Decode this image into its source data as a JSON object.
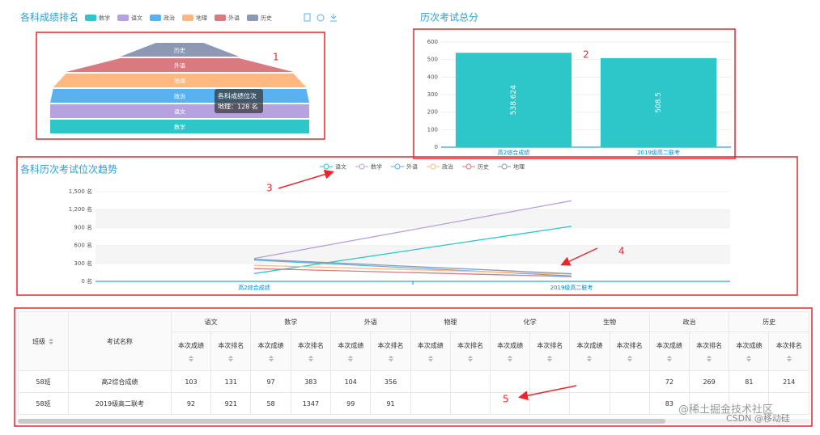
{
  "chart_data": [
    {
      "type": "funnel",
      "title": "各科成绩排名",
      "categories": [
        "数学",
        "语文",
        "政治",
        "地理",
        "外语",
        "历史"
      ],
      "values": [
        131,
        131,
        131,
        128,
        115,
        60
      ],
      "colors": [
        "#2ec7c9",
        "#b6a2de",
        "#5ab1ef",
        "#ffb980",
        "#d87a80",
        "#8d98b3"
      ],
      "tooltip": {
        "title": "各科成绩位次",
        "text": "地理：128 名"
      }
    },
    {
      "type": "bar",
      "title": "历次考试总分",
      "categories": [
        "高2综合成绩",
        "2019级高二联考"
      ],
      "values": [
        538.624,
        508.5
      ],
      "color": "#2ec7c9",
      "ylim": [
        0,
        600
      ],
      "yticks": [
        0,
        100,
        200,
        300,
        400,
        500,
        600
      ],
      "grid": true
    },
    {
      "type": "line",
      "title": "各科历次考试位次趋势",
      "categories": [
        "高2综合成绩",
        "2019级高二联考"
      ],
      "series": [
        {
          "name": "语文",
          "color": "#2ec7c9",
          "values": [
            131,
            921
          ]
        },
        {
          "name": "数学",
          "color": "#b6a2de",
          "values": [
            383,
            1347
          ]
        },
        {
          "name": "外语",
          "color": "#5ab1ef",
          "values": [
            356,
            91
          ]
        },
        {
          "name": "政治",
          "color": "#ffb980",
          "values": [
            269,
            120
          ]
        },
        {
          "name": "历史",
          "color": "#d87a80",
          "values": [
            214,
            80
          ]
        },
        {
          "name": "地理",
          "color": "#8d98b3",
          "values": [
            370,
            128
          ]
        }
      ],
      "ylim": [
        0,
        1500
      ],
      "yticks": [
        {
          "value": 0,
          "label": "0 名"
        },
        {
          "value": 300,
          "label": "300 名"
        },
        {
          "value": 600,
          "label": "600 名"
        },
        {
          "value": 900,
          "label": "900 名"
        },
        {
          "value": 1200,
          "label": "1,200 名"
        },
        {
          "value": 1500,
          "label": "1,500 名"
        }
      ],
      "grid": true,
      "legend": "top"
    }
  ],
  "table": {
    "class_header": "班级",
    "exam_header": "考试名称",
    "subjects": [
      "语文",
      "数学",
      "外语",
      "物理",
      "化学",
      "生物",
      "政治",
      "历史"
    ],
    "subcolumns": [
      "本次成绩",
      "本次排名"
    ],
    "rows": [
      [
        "58班",
        "高2综合成绩",
        103,
        131,
        97,
        383,
        104,
        356,
        null,
        null,
        null,
        null,
        null,
        null,
        72,
        269,
        81,
        214
      ],
      [
        "58班",
        "2019级高二联考",
        92,
        921,
        58,
        1347,
        99,
        91,
        null,
        null,
        null,
        null,
        null,
        null,
        83,
        null,
        null,
        null
      ]
    ]
  },
  "annotations": [
    "1",
    "2",
    "3",
    "4",
    "5"
  ],
  "watermark": {
    "line1": "@稀土掘金技术社区",
    "line2": "CSDN @移动硅"
  }
}
